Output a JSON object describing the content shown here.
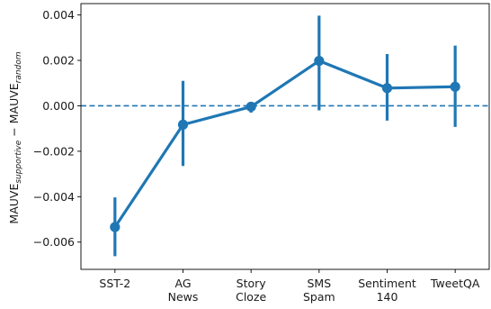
{
  "chart_data": {
    "type": "line",
    "title": "",
    "xlabel": "",
    "ylabel": {
      "base1": "MAUVE",
      "sub1": "supportive",
      "operator": "−",
      "base2": "MAUVE",
      "sub2": "random"
    },
    "categories": [
      [
        "SST-2"
      ],
      [
        "AG",
        "News"
      ],
      [
        "Story",
        "Cloze"
      ],
      [
        "SMS",
        "Spam"
      ],
      [
        "Sentiment",
        "140"
      ],
      [
        "TweetQA"
      ]
    ],
    "series": [
      {
        "values": [
          -0.00534,
          -0.00083,
          -4e-05,
          0.00198,
          0.00078,
          0.00084
        ],
        "error_low": [
          -0.00662,
          -0.00265,
          -0.0003,
          -0.0002,
          -0.00065,
          -0.00093
        ],
        "error_high": [
          -0.00403,
          0.0011,
          0.0001,
          0.00397,
          0.00228,
          0.00265
        ],
        "color": "#1f77b4"
      }
    ],
    "reference_line": {
      "y": 0,
      "style": "dashed",
      "color": "#1f77b4"
    },
    "ylim": [
      -0.0072,
      0.0045
    ],
    "yticks": [
      -0.006,
      -0.004,
      -0.002,
      0.0,
      0.002,
      0.004
    ],
    "ytick_labels": [
      "−0.006",
      "−0.004",
      "−0.002",
      "0.000",
      "0.002",
      "0.004"
    ],
    "grid": false,
    "legend": "none"
  }
}
